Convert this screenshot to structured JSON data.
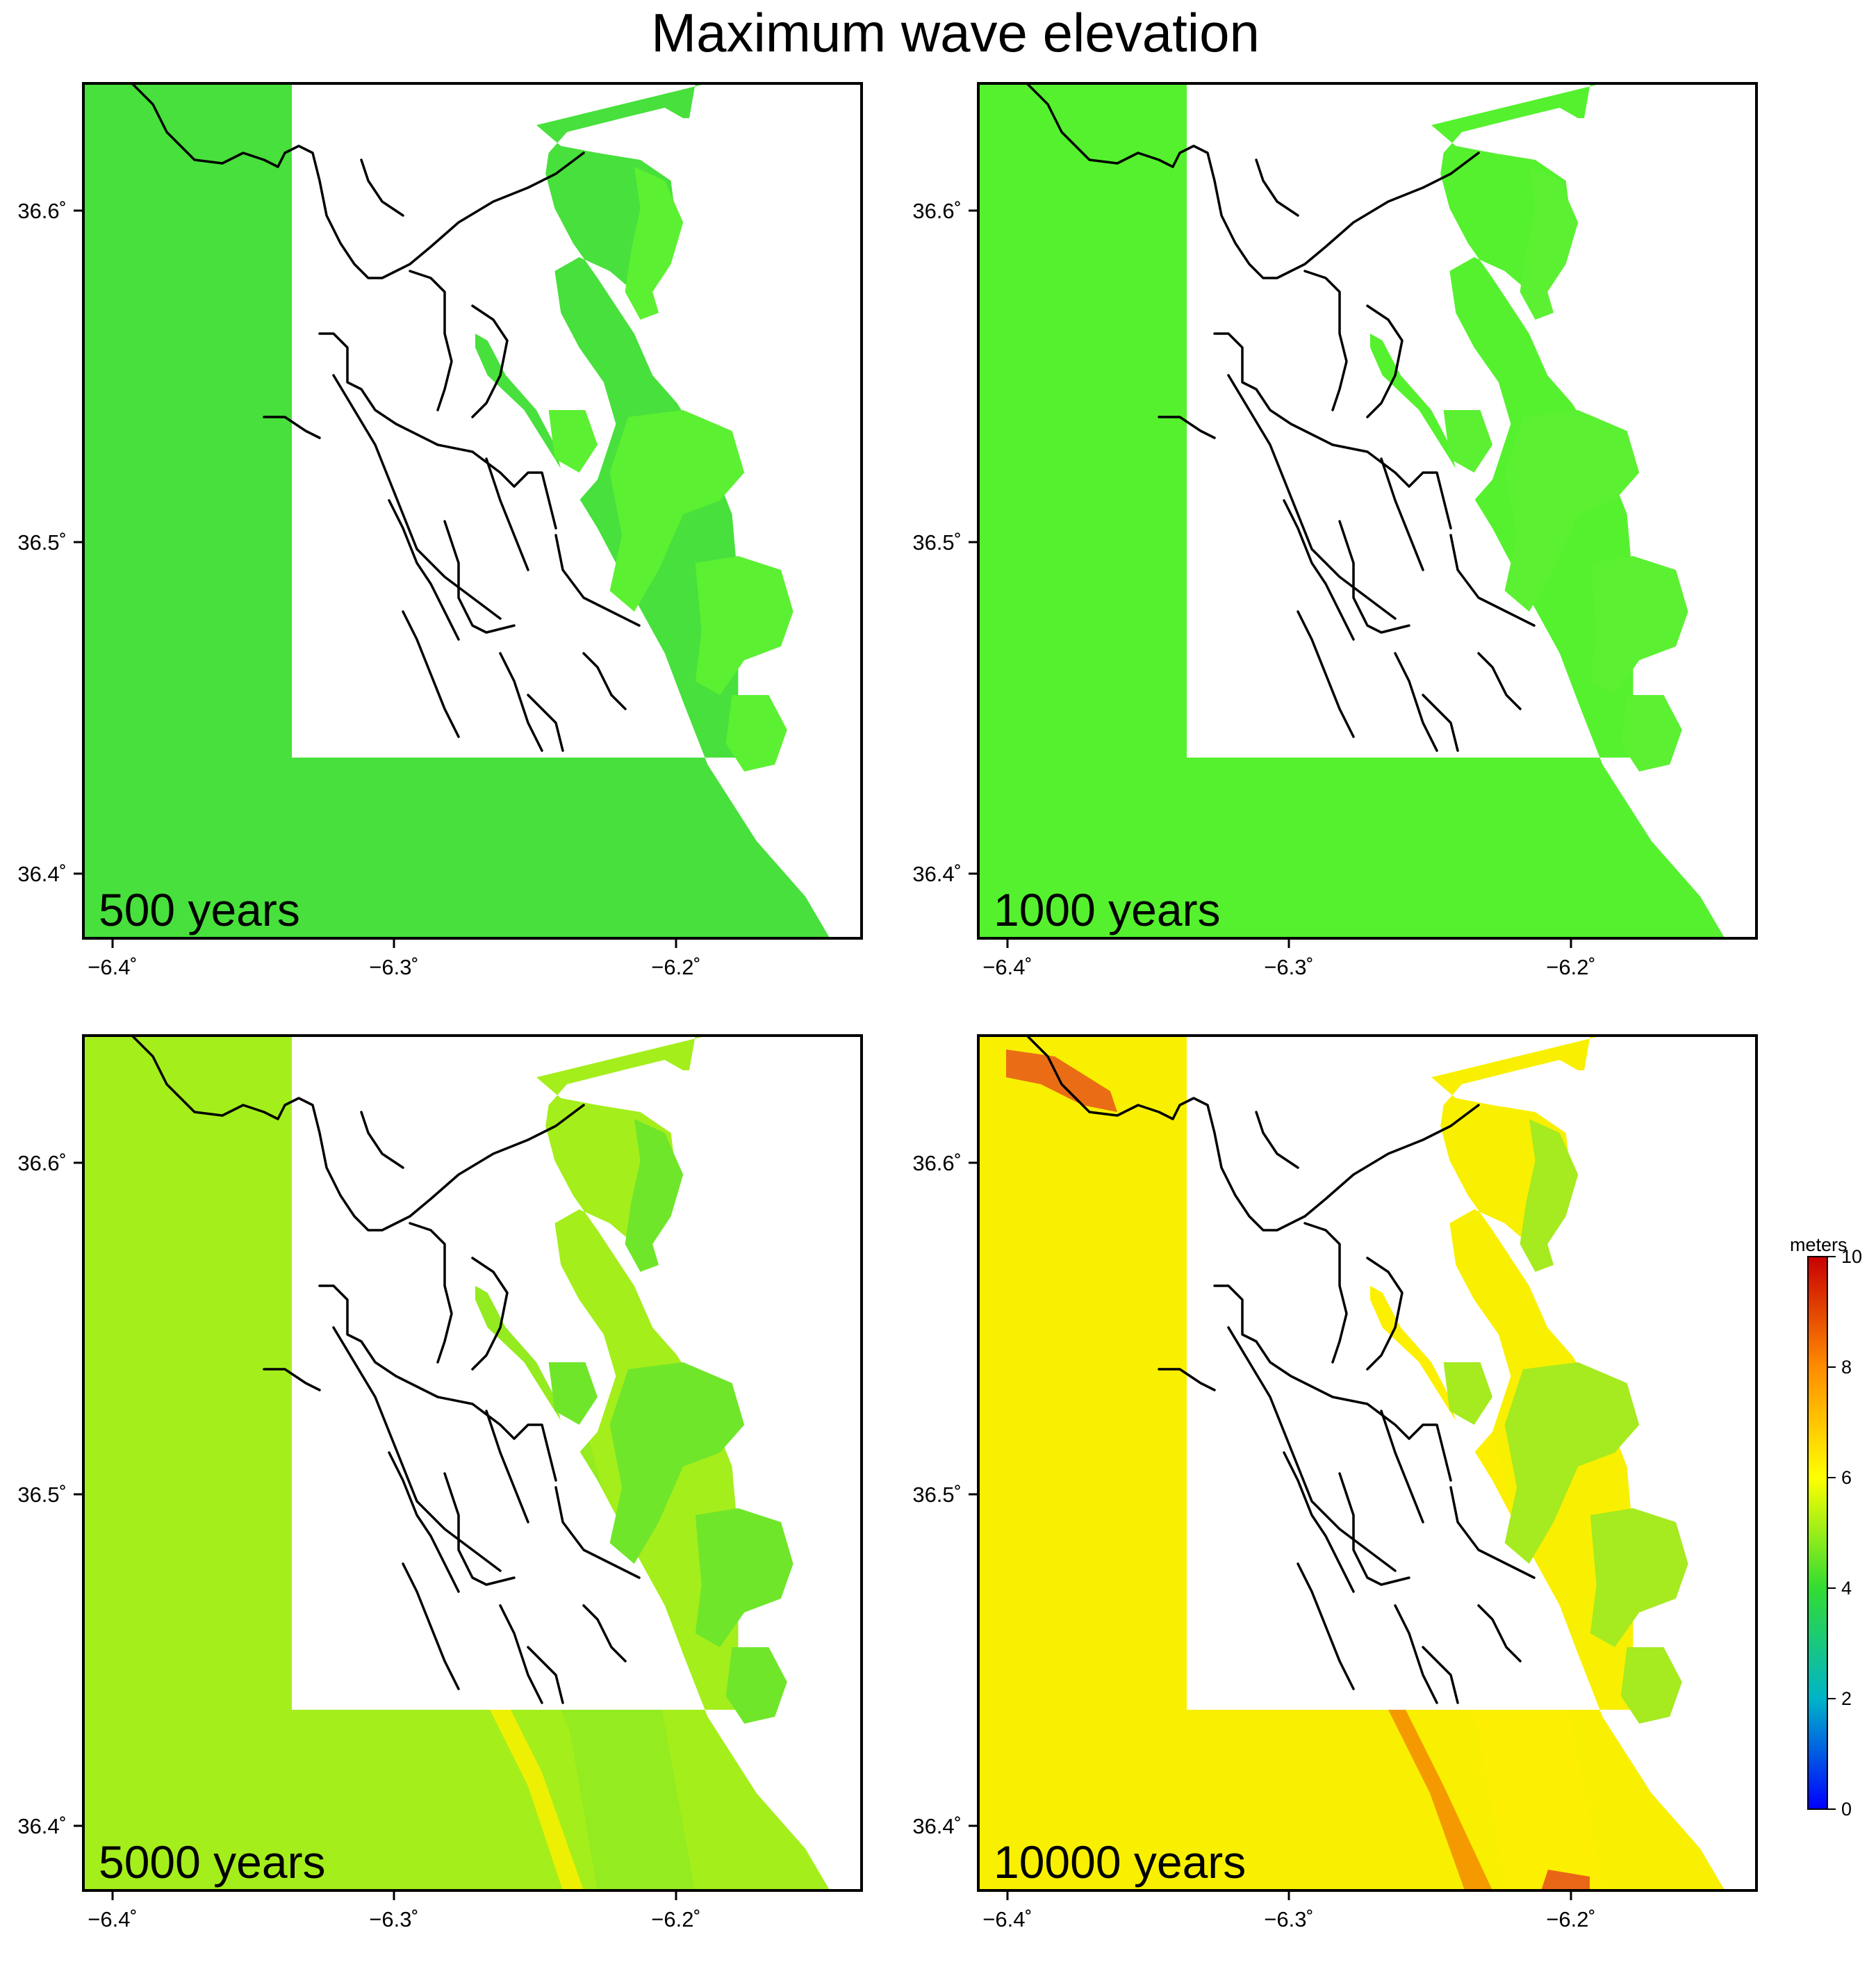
{
  "figure": {
    "title": "Maximum wave elevation"
  },
  "panels": [
    {
      "label": "500 years",
      "offshore_color": "#48e03c",
      "nearshore_color": "#48e03c",
      "coast_glow": "#48e03c",
      "hotspot_color": "#48e03c",
      "low_lying_color": "#5cf032"
    },
    {
      "label": "1000 years",
      "offshore_color": "#55f12e",
      "nearshore_color": "#55f12e",
      "coast_glow": "#55f12e",
      "hotspot_color": "#55f12e",
      "low_lying_color": "#5cf032"
    },
    {
      "label": "5000 years",
      "offshore_color": "#a4ee1c",
      "nearshore_color": "#8bea22",
      "coast_glow": "#f5f000",
      "hotspot_color": "#ffd400",
      "low_lying_color": "#6fe62a"
    },
    {
      "label": "10000 years",
      "offshore_color": "#f8f000",
      "nearshore_color": "#ffee00",
      "coast_glow": "#f39000",
      "hotspot_color": "#e8561a",
      "low_lying_color": "#a6ea20"
    }
  ],
  "axes": {
    "x_ticks": [
      "−6.4˚",
      "−6.3˚",
      "−6.2˚"
    ],
    "y_ticks": [
      "36.6˚",
      "36.5˚",
      "36.4˚"
    ]
  },
  "colorbar": {
    "label": "meters",
    "min": 0,
    "max": 10,
    "ticks": [
      "0",
      "2",
      "4",
      "6",
      "8",
      "10"
    ],
    "colors": [
      "#0000ff",
      "#00b4c8",
      "#32dc32",
      "#ffff00",
      "#ff8c00",
      "#c80000"
    ]
  }
}
